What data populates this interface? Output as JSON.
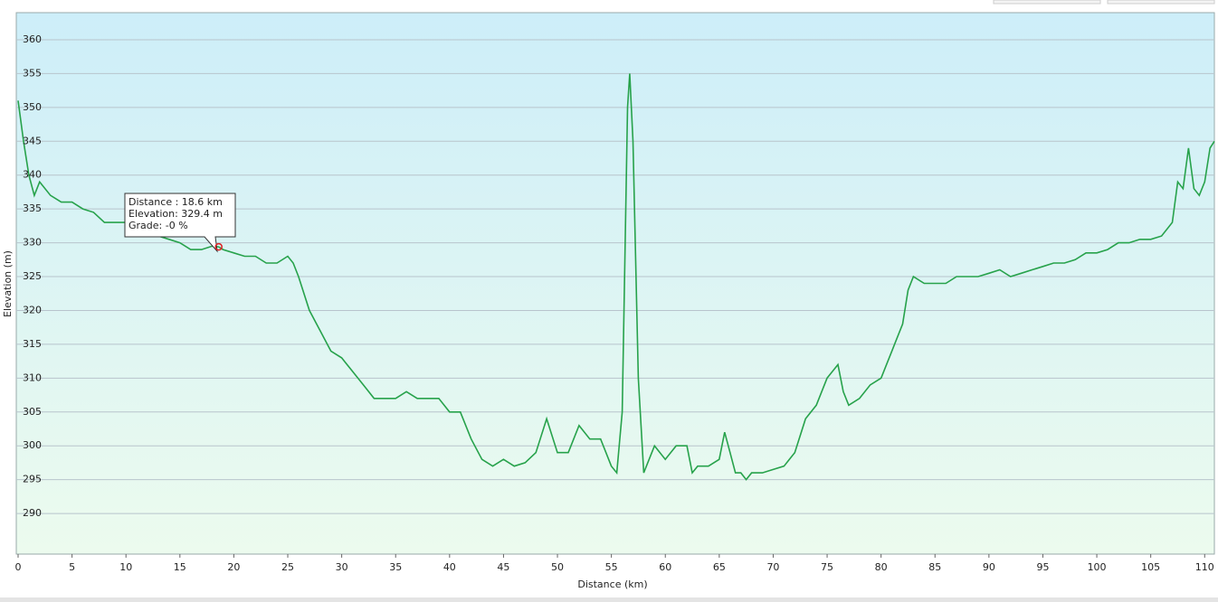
{
  "chart_data": {
    "type": "line",
    "xlabel": "Distance  (km)",
    "ylabel": "Elevation (m)",
    "x": [
      0,
      0.5,
      1,
      1.5,
      2,
      3,
      4,
      5,
      6,
      7,
      8,
      9,
      10,
      11,
      12,
      13,
      14,
      15,
      16,
      17,
      18,
      18.6,
      19,
      20,
      21,
      22,
      23,
      24,
      25,
      25.5,
      26,
      27,
      28,
      29,
      30,
      31,
      32,
      33,
      34,
      35,
      36,
      37,
      38,
      39,
      40,
      41,
      42,
      43,
      44,
      45,
      46,
      47,
      48,
      49,
      50,
      51,
      52,
      53,
      54,
      55,
      55.5,
      56,
      56.5,
      56.7,
      57,
      57.5,
      58,
      59,
      60,
      61,
      62,
      62.5,
      63,
      64,
      65,
      65.5,
      66,
      66.5,
      67,
      67.5,
      68,
      69,
      70,
      71,
      72,
      73,
      74,
      75,
      76,
      76.5,
      77,
      78,
      79,
      80,
      81,
      82,
      82.5,
      83,
      84,
      85,
      86,
      87,
      88,
      89,
      90,
      91,
      92,
      93,
      94,
      95,
      96,
      97,
      98,
      99,
      100,
      101,
      102,
      103,
      104,
      105,
      106,
      107,
      107.5,
      108,
      108.5,
      109,
      109.5,
      110,
      110.5,
      110.9
    ],
    "series": [
      {
        "color": "#27a24b",
        "values": [
          351,
          345,
          340,
          337,
          339,
          337,
          336,
          336,
          335,
          334.5,
          333,
          333,
          333,
          331,
          331,
          331,
          330.5,
          330,
          329,
          329,
          329.5,
          329.4,
          329,
          328.5,
          328,
          328,
          327,
          327,
          328,
          327,
          325,
          320,
          317,
          314,
          313,
          311,
          309,
          307,
          307,
          307,
          308,
          307,
          307,
          307,
          305,
          305,
          301,
          298,
          297,
          298,
          297,
          297.5,
          299,
          304,
          299,
          299,
          303,
          301,
          301,
          297,
          296,
          305,
          350,
          355,
          345,
          310,
          296,
          300,
          298,
          300,
          300,
          296,
          297,
          297,
          298,
          302,
          299,
          296,
          296,
          295,
          296,
          296,
          296.5,
          297,
          299,
          304,
          306,
          310,
          312,
          308,
          306,
          307,
          309,
          310,
          314,
          318,
          323,
          325,
          324,
          324,
          324,
          325,
          325,
          325,
          325.5,
          326,
          325,
          325.5,
          326,
          326.5,
          327,
          327,
          327.5,
          328.5,
          328.5,
          329,
          330,
          330,
          330.5,
          330.5,
          331,
          333,
          339,
          338,
          344,
          338,
          337,
          339,
          344,
          345
        ]
      }
    ],
    "xlim": [
      0,
      110.9
    ],
    "ylim": [
      284,
      364
    ],
    "xticks": [
      0,
      5,
      10,
      15,
      20,
      25,
      30,
      35,
      40,
      45,
      50,
      55,
      60,
      65,
      70,
      75,
      80,
      85,
      90,
      95,
      100,
      105,
      110
    ],
    "yticks": [
      290,
      295,
      300,
      305,
      310,
      315,
      320,
      325,
      330,
      335,
      340,
      345,
      350,
      355,
      360
    ],
    "grid": true,
    "tooltip": [
      "Distance : 18.6 km",
      "Elevation: 329.4 m",
      "Grade: -0 %"
    ]
  }
}
